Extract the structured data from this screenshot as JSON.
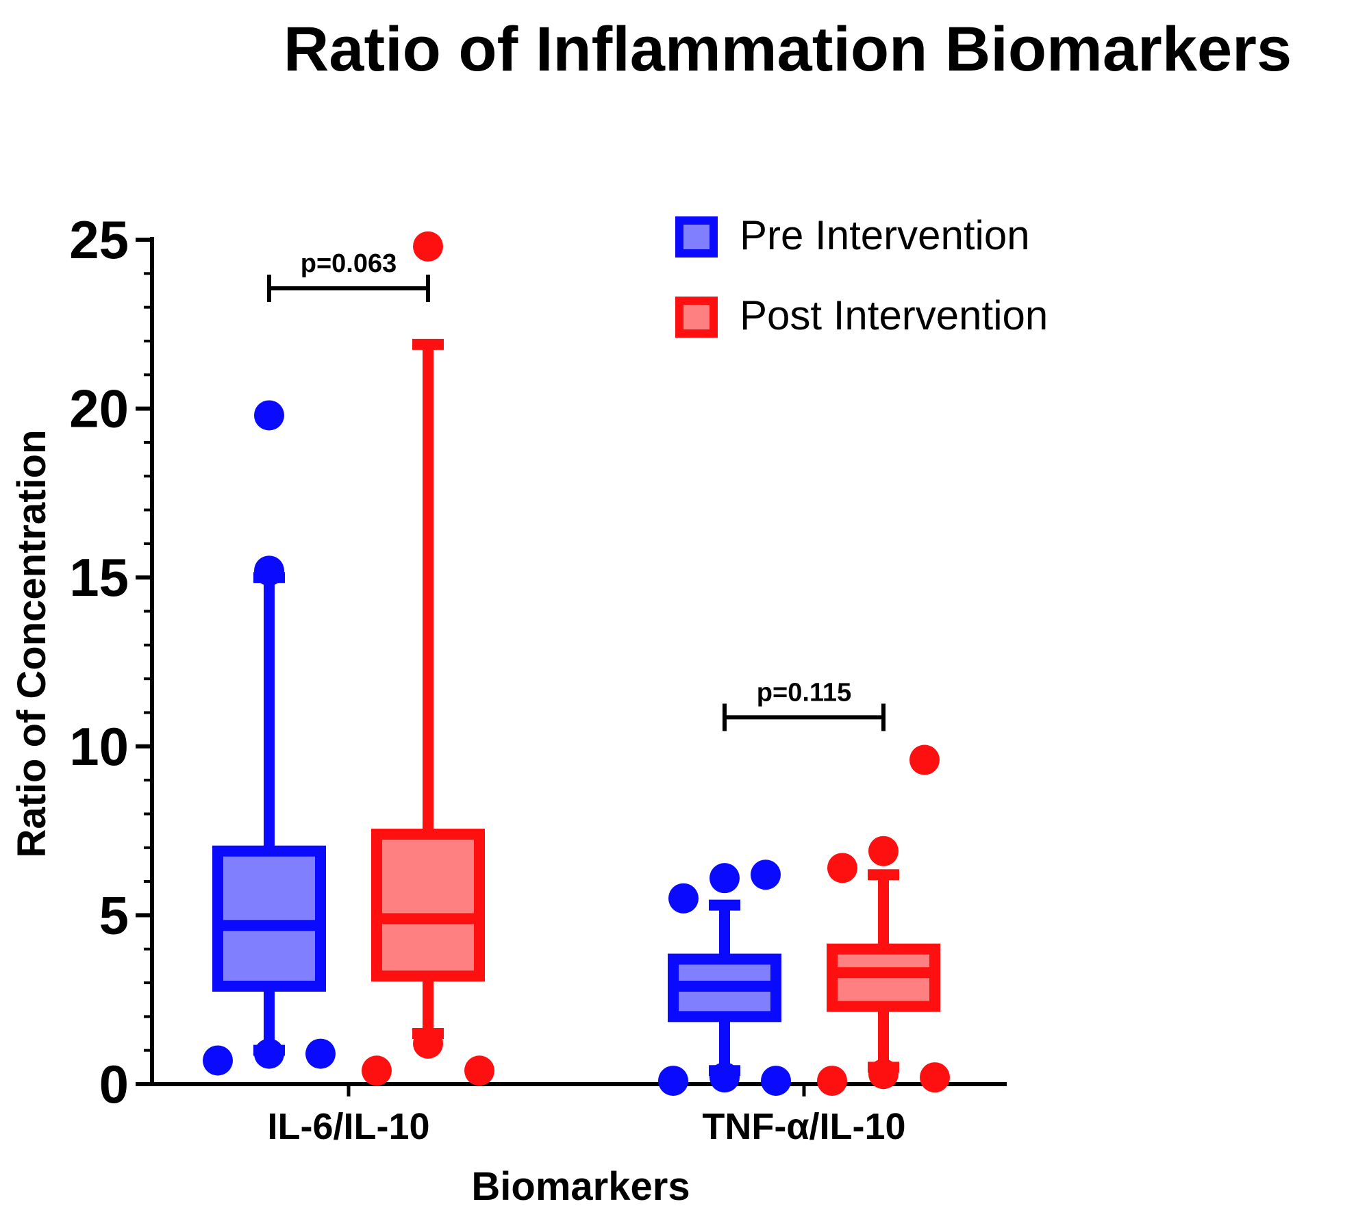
{
  "chart_data": {
    "type": "boxplot",
    "title": "Ratio of Inflammation Biomarkers",
    "xlabel": "Biomarkers",
    "ylabel": "Ratio of Concentration",
    "ylim": [
      0,
      25
    ],
    "yticks": [
      "0",
      "5",
      "10",
      "15",
      "20",
      "25"
    ],
    "ytick_values": [
      0,
      5,
      10,
      15,
      20,
      25
    ],
    "minor_tick_step": 1,
    "categories": [
      "IL-6/IL-10",
      "TNF-α/IL-10"
    ],
    "legend": {
      "position": "top-right",
      "entries": [
        {
          "label": "Pre Intervention",
          "color": "#0a0aff",
          "fill": "#8080ff"
        },
        {
          "label": "Post Intervention",
          "color": "#ff1010",
          "fill": "#ff8080"
        }
      ]
    },
    "annotations": [
      {
        "text": "p=0.063",
        "category": 0
      },
      {
        "text": "p=0.115",
        "category": 1
      }
    ],
    "series": [
      {
        "name": "Pre Intervention",
        "color": "#0a0aff",
        "fill": "#8080ff",
        "boxes": [
          {
            "whisker_low": 1.0,
            "q1": 2.9,
            "median": 4.7,
            "q3": 6.9,
            "whisker_high": 15.0,
            "outliers": [
              0.7,
              0.9,
              0.9,
              15.2,
              19.8
            ]
          },
          {
            "whisker_low": 0.4,
            "q1": 2.0,
            "median": 2.9,
            "q3": 3.7,
            "whisker_high": 5.3,
            "outliers": [
              0.1,
              0.2,
              0.1,
              5.5,
              6.1,
              6.2
            ]
          }
        ]
      },
      {
        "name": "Post Intervention",
        "color": "#ff1010",
        "fill": "#ff8080",
        "boxes": [
          {
            "whisker_low": 1.5,
            "q1": 3.2,
            "median": 4.9,
            "q3": 7.4,
            "whisker_high": 21.9,
            "outliers": [
              0.4,
              1.2,
              0.4,
              24.8
            ]
          },
          {
            "whisker_low": 0.5,
            "q1": 2.3,
            "median": 3.3,
            "q3": 4.0,
            "whisker_high": 6.2,
            "outliers": [
              0.1,
              0.3,
              0.2,
              6.4,
              6.9,
              9.6
            ]
          }
        ]
      }
    ]
  }
}
